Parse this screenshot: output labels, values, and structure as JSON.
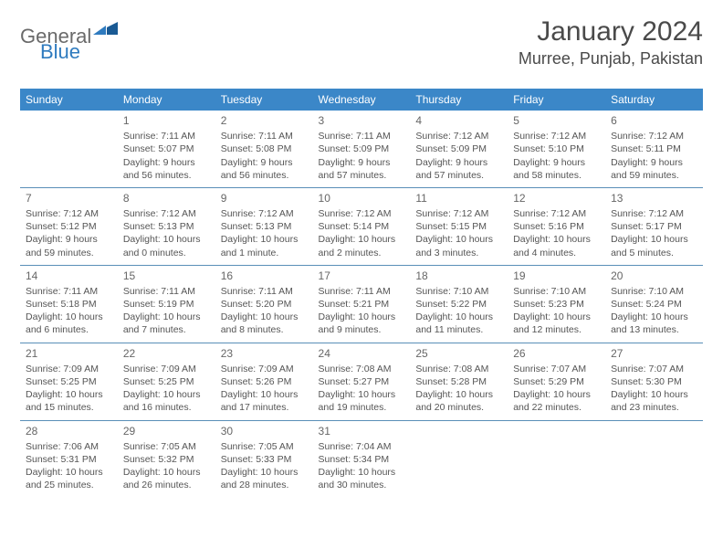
{
  "logo": {
    "part1": "General",
    "part2": "Blue"
  },
  "title": "January 2024",
  "location": "Murree, Punjab, Pakistan",
  "colors": {
    "header_bg": "#3b87c8",
    "header_text": "#ffffff",
    "border": "#5a8fb8",
    "logo_gray": "#6a6a6a",
    "logo_blue": "#2f7bbf",
    "text": "#555555"
  },
  "day_headers": [
    "Sunday",
    "Monday",
    "Tuesday",
    "Wednesday",
    "Thursday",
    "Friday",
    "Saturday"
  ],
  "weeks": [
    [
      null,
      {
        "n": "1",
        "sunrise": "7:11 AM",
        "sunset": "5:07 PM",
        "daylight": "9 hours and 56 minutes."
      },
      {
        "n": "2",
        "sunrise": "7:11 AM",
        "sunset": "5:08 PM",
        "daylight": "9 hours and 56 minutes."
      },
      {
        "n": "3",
        "sunrise": "7:11 AM",
        "sunset": "5:09 PM",
        "daylight": "9 hours and 57 minutes."
      },
      {
        "n": "4",
        "sunrise": "7:12 AM",
        "sunset": "5:09 PM",
        "daylight": "9 hours and 57 minutes."
      },
      {
        "n": "5",
        "sunrise": "7:12 AM",
        "sunset": "5:10 PM",
        "daylight": "9 hours and 58 minutes."
      },
      {
        "n": "6",
        "sunrise": "7:12 AM",
        "sunset": "5:11 PM",
        "daylight": "9 hours and 59 minutes."
      }
    ],
    [
      {
        "n": "7",
        "sunrise": "7:12 AM",
        "sunset": "5:12 PM",
        "daylight": "9 hours and 59 minutes."
      },
      {
        "n": "8",
        "sunrise": "7:12 AM",
        "sunset": "5:13 PM",
        "daylight": "10 hours and 0 minutes."
      },
      {
        "n": "9",
        "sunrise": "7:12 AM",
        "sunset": "5:13 PM",
        "daylight": "10 hours and 1 minute."
      },
      {
        "n": "10",
        "sunrise": "7:12 AM",
        "sunset": "5:14 PM",
        "daylight": "10 hours and 2 minutes."
      },
      {
        "n": "11",
        "sunrise": "7:12 AM",
        "sunset": "5:15 PM",
        "daylight": "10 hours and 3 minutes."
      },
      {
        "n": "12",
        "sunrise": "7:12 AM",
        "sunset": "5:16 PM",
        "daylight": "10 hours and 4 minutes."
      },
      {
        "n": "13",
        "sunrise": "7:12 AM",
        "sunset": "5:17 PM",
        "daylight": "10 hours and 5 minutes."
      }
    ],
    [
      {
        "n": "14",
        "sunrise": "7:11 AM",
        "sunset": "5:18 PM",
        "daylight": "10 hours and 6 minutes."
      },
      {
        "n": "15",
        "sunrise": "7:11 AM",
        "sunset": "5:19 PM",
        "daylight": "10 hours and 7 minutes."
      },
      {
        "n": "16",
        "sunrise": "7:11 AM",
        "sunset": "5:20 PM",
        "daylight": "10 hours and 8 minutes."
      },
      {
        "n": "17",
        "sunrise": "7:11 AM",
        "sunset": "5:21 PM",
        "daylight": "10 hours and 9 minutes."
      },
      {
        "n": "18",
        "sunrise": "7:10 AM",
        "sunset": "5:22 PM",
        "daylight": "10 hours and 11 minutes."
      },
      {
        "n": "19",
        "sunrise": "7:10 AM",
        "sunset": "5:23 PM",
        "daylight": "10 hours and 12 minutes."
      },
      {
        "n": "20",
        "sunrise": "7:10 AM",
        "sunset": "5:24 PM",
        "daylight": "10 hours and 13 minutes."
      }
    ],
    [
      {
        "n": "21",
        "sunrise": "7:09 AM",
        "sunset": "5:25 PM",
        "daylight": "10 hours and 15 minutes."
      },
      {
        "n": "22",
        "sunrise": "7:09 AM",
        "sunset": "5:25 PM",
        "daylight": "10 hours and 16 minutes."
      },
      {
        "n": "23",
        "sunrise": "7:09 AM",
        "sunset": "5:26 PM",
        "daylight": "10 hours and 17 minutes."
      },
      {
        "n": "24",
        "sunrise": "7:08 AM",
        "sunset": "5:27 PM",
        "daylight": "10 hours and 19 minutes."
      },
      {
        "n": "25",
        "sunrise": "7:08 AM",
        "sunset": "5:28 PM",
        "daylight": "10 hours and 20 minutes."
      },
      {
        "n": "26",
        "sunrise": "7:07 AM",
        "sunset": "5:29 PM",
        "daylight": "10 hours and 22 minutes."
      },
      {
        "n": "27",
        "sunrise": "7:07 AM",
        "sunset": "5:30 PM",
        "daylight": "10 hours and 23 minutes."
      }
    ],
    [
      {
        "n": "28",
        "sunrise": "7:06 AM",
        "sunset": "5:31 PM",
        "daylight": "10 hours and 25 minutes."
      },
      {
        "n": "29",
        "sunrise": "7:05 AM",
        "sunset": "5:32 PM",
        "daylight": "10 hours and 26 minutes."
      },
      {
        "n": "30",
        "sunrise": "7:05 AM",
        "sunset": "5:33 PM",
        "daylight": "10 hours and 28 minutes."
      },
      {
        "n": "31",
        "sunrise": "7:04 AM",
        "sunset": "5:34 PM",
        "daylight": "10 hours and 30 minutes."
      },
      null,
      null,
      null
    ]
  ],
  "labels": {
    "sunrise": "Sunrise: ",
    "sunset": "Sunset: ",
    "daylight": "Daylight: "
  }
}
